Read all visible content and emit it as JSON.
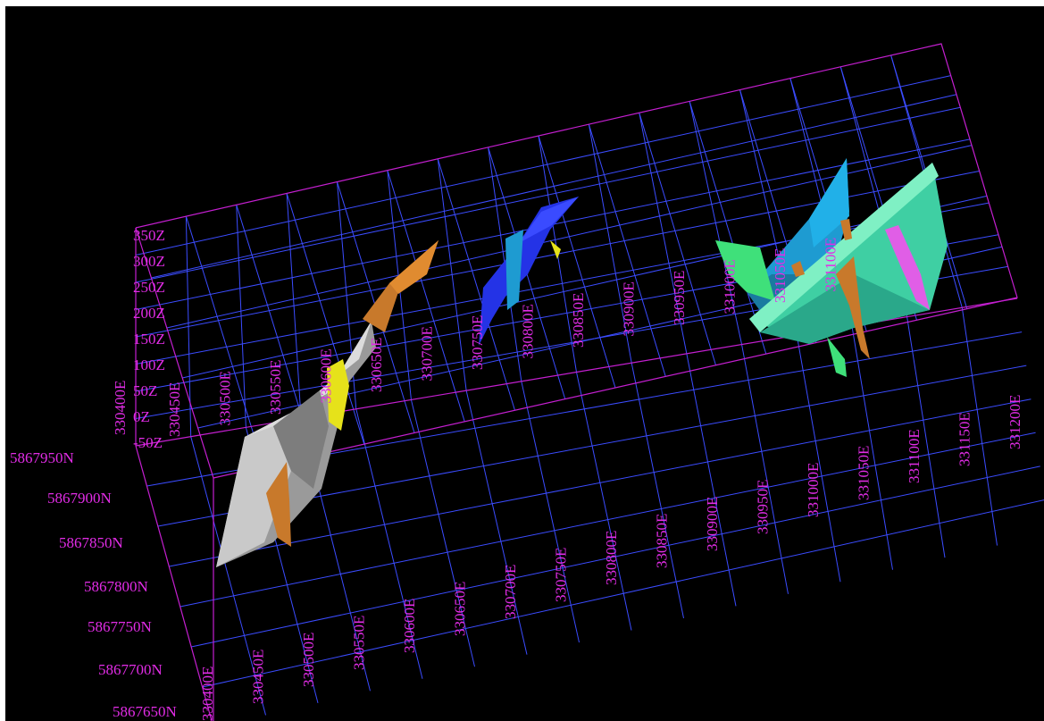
{
  "colors": {
    "background": "#000000",
    "grid": "#3b4cff",
    "box": "#c41fd0",
    "label": "#e22ce6"
  },
  "z_labels": [
    "350Z",
    "300Z",
    "250Z",
    "200Z",
    "150Z",
    "100Z",
    "50Z",
    "0Z",
    "-50Z"
  ],
  "back_north_label": "330400E",
  "back_easting_labels": [
    "330450E",
    "330500E",
    "330550E",
    "330600E",
    "330650E",
    "330700E",
    "330750E",
    "330800E",
    "330850E",
    "330900E",
    "330950E",
    "331000E",
    "331050E",
    "331100E"
  ],
  "northing_labels": [
    "5867950N",
    "5867900N",
    "5867850N",
    "5867800N",
    "5867750N",
    "5867700N",
    "5867650N"
  ],
  "front_easting_labels": [
    "330400E",
    "330450E",
    "330500E",
    "330550E",
    "330600E",
    "330650E",
    "330700E",
    "330750E",
    "330800E",
    "330850E",
    "330900E",
    "330950E",
    "331000E",
    "331050E",
    "331100E",
    "331150E",
    "331200E"
  ],
  "bodies": [
    {
      "name": "white-grey-vein",
      "color": "#a9a9a9"
    },
    {
      "name": "orange-vein",
      "color": "#c8792b"
    },
    {
      "name": "yellow-vein",
      "color": "#e6e21a"
    },
    {
      "name": "blue-vein",
      "color": "#2433e6"
    },
    {
      "name": "cyan-vein",
      "color": "#1e9bd1"
    },
    {
      "name": "green-vein",
      "color": "#3fe07a"
    },
    {
      "name": "teal-vein",
      "color": "#3fcfa3"
    },
    {
      "name": "pink-vein",
      "color": "#e05ee6"
    }
  ]
}
